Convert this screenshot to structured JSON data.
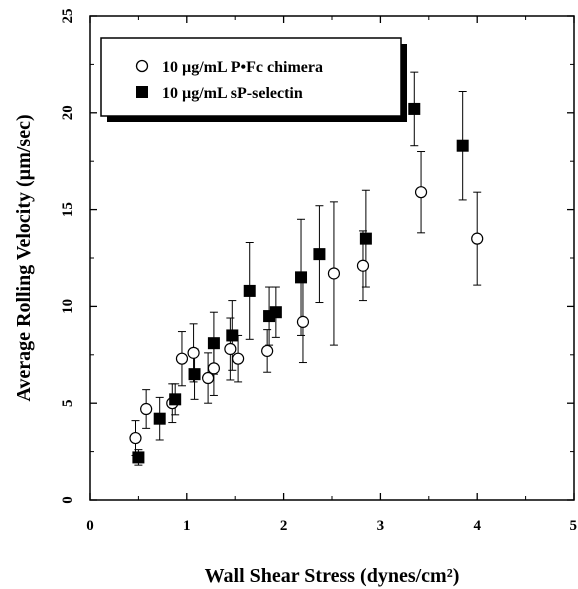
{
  "chart_data": {
    "type": "scatter",
    "xlabel": "Wall Shear Stress (dynes/cm²)",
    "ylabel": "Average Rolling Velocity (µm/sec)",
    "xlim": [
      0,
      5
    ],
    "ylim": [
      0,
      25
    ],
    "xticks": [
      "0",
      "1",
      "2",
      "3",
      "4",
      "5"
    ],
    "yticks": [
      "0",
      "5",
      "10",
      "15",
      "20",
      "25"
    ],
    "grid": false,
    "legend_position": "top-left",
    "series": [
      {
        "name": "10 µg/mL P•Fc chimera",
        "marker": "open-circle",
        "color": "#000000",
        "points": [
          {
            "x": 0.47,
            "y": 3.2,
            "err": 0.9
          },
          {
            "x": 0.58,
            "y": 4.7,
            "err": 1.0
          },
          {
            "x": 0.85,
            "y": 5.0,
            "err": 1.0
          },
          {
            "x": 0.95,
            "y": 7.3,
            "err": 1.4
          },
          {
            "x": 1.07,
            "y": 7.6,
            "err": 1.5
          },
          {
            "x": 1.22,
            "y": 6.3,
            "err": 1.3
          },
          {
            "x": 1.28,
            "y": 6.8,
            "err": 1.4
          },
          {
            "x": 1.45,
            "y": 7.8,
            "err": 1.6
          },
          {
            "x": 1.53,
            "y": 7.3,
            "err": 1.2
          },
          {
            "x": 1.83,
            "y": 7.7,
            "err": 1.1
          },
          {
            "x": 2.2,
            "y": 9.2,
            "err": 2.1
          },
          {
            "x": 2.52,
            "y": 11.7,
            "err": 3.7
          },
          {
            "x": 2.82,
            "y": 12.1,
            "err": 1.8
          },
          {
            "x": 3.42,
            "y": 15.9,
            "err": 2.1
          },
          {
            "x": 4.0,
            "y": 13.5,
            "err": 2.4
          }
        ]
      },
      {
        "name": "10 µg/mL sP-selectin",
        "marker": "filled-square",
        "color": "#000000",
        "points": [
          {
            "x": 0.5,
            "y": 2.2,
            "err": 0.4
          },
          {
            "x": 0.72,
            "y": 4.2,
            "err": 1.1
          },
          {
            "x": 0.88,
            "y": 5.2,
            "err": 0.8
          },
          {
            "x": 1.08,
            "y": 6.5,
            "err": 1.3
          },
          {
            "x": 1.28,
            "y": 8.1,
            "err": 1.6
          },
          {
            "x": 1.47,
            "y": 8.5,
            "err": 1.8
          },
          {
            "x": 1.65,
            "y": 10.8,
            "err": 2.5
          },
          {
            "x": 1.85,
            "y": 9.5,
            "err": 1.5
          },
          {
            "x": 1.92,
            "y": 9.7,
            "err": 1.3
          },
          {
            "x": 2.18,
            "y": 11.5,
            "err": 3.0
          },
          {
            "x": 2.37,
            "y": 12.7,
            "err": 2.5
          },
          {
            "x": 2.85,
            "y": 13.5,
            "err": 2.5
          },
          {
            "x": 3.35,
            "y": 20.2,
            "err": 1.9
          },
          {
            "x": 3.85,
            "y": 18.3,
            "err": 2.8
          }
        ]
      }
    ]
  }
}
